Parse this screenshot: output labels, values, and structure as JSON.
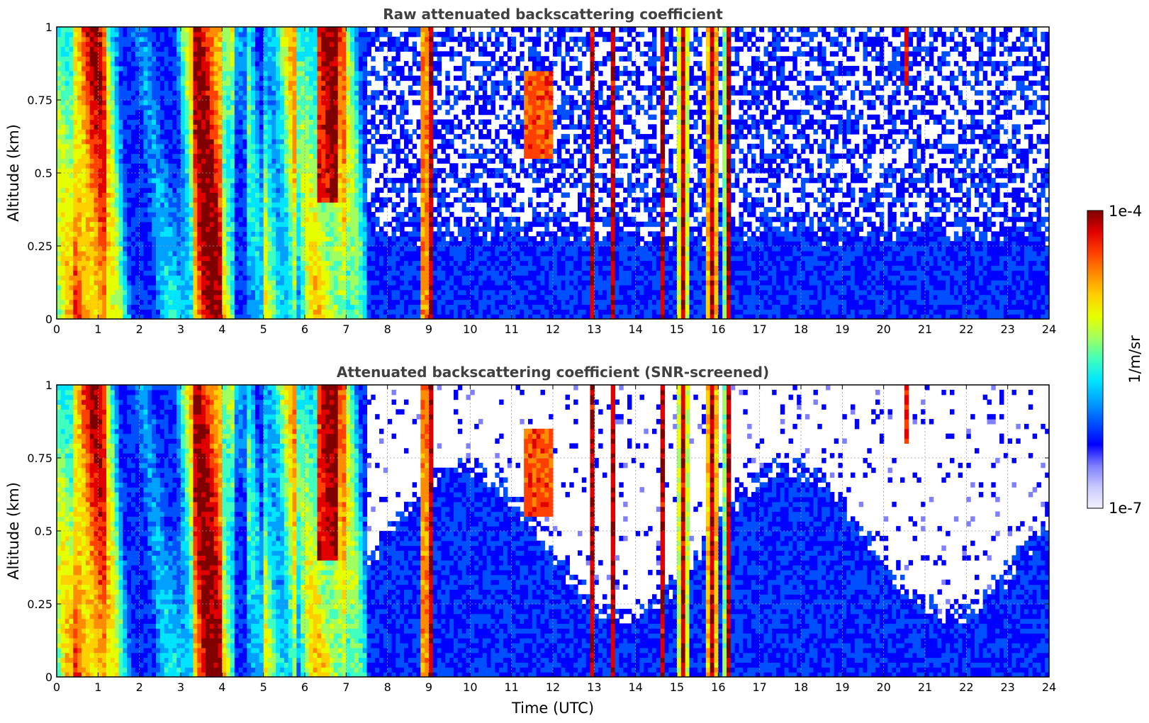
{
  "chart_data": [
    {
      "type": "heatmap",
      "title": "Raw attenuated backscattering coefficient",
      "xlabel": "",
      "ylabel": "Altitude (km)",
      "xlim": [
        0,
        24
      ],
      "ylim": [
        0,
        1
      ],
      "xticks": [
        "0",
        "1",
        "2",
        "3",
        "4",
        "5",
        "6",
        "7",
        "8",
        "9",
        "10",
        "11",
        "12",
        "13",
        "14",
        "15",
        "16",
        "17",
        "18",
        "19",
        "20",
        "21",
        "22",
        "23",
        "24"
      ],
      "yticks": [
        "0",
        "0.25",
        "0.5",
        "0.75",
        "1"
      ],
      "grid": true,
      "colormap": "jet",
      "screened": false
    },
    {
      "type": "heatmap",
      "title": "Attenuated backscattering coefficient (SNR-screened)",
      "xlabel": "Time (UTC)",
      "ylabel": "Altitude (km)",
      "xlim": [
        0,
        24
      ],
      "ylim": [
        0,
        1
      ],
      "xticks": [
        "0",
        "1",
        "2",
        "3",
        "4",
        "5",
        "6",
        "7",
        "8",
        "9",
        "10",
        "11",
        "12",
        "13",
        "14",
        "15",
        "16",
        "17",
        "18",
        "19",
        "20",
        "21",
        "22",
        "23",
        "24"
      ],
      "yticks": [
        "0",
        "0.25",
        "0.5",
        "0.75",
        "1"
      ],
      "grid": true,
      "colormap": "jet",
      "screened": true
    }
  ],
  "colorbar": {
    "label": "1/m/sr",
    "min_label": "1e-7",
    "max_label": "1e-4",
    "scale": "log",
    "colors": [
      "#f2f2ff",
      "#c8c8ff",
      "#7f7fff",
      "#0000ff",
      "#0050ff",
      "#00a0ff",
      "#00e5ff",
      "#40ffbf",
      "#a0ff60",
      "#e6ff00",
      "#ffd000",
      "#ff8c00",
      "#ff4000",
      "#e00000",
      "#800000"
    ]
  }
}
